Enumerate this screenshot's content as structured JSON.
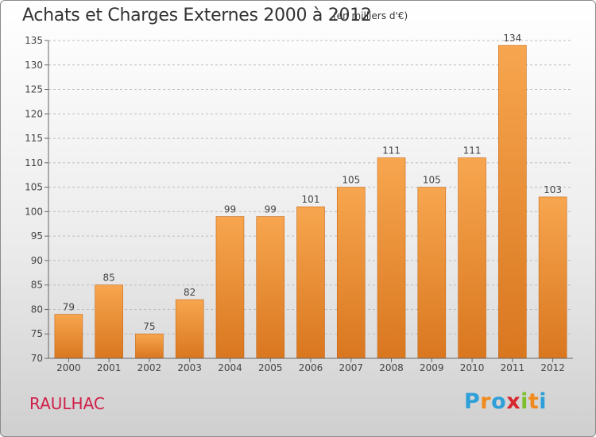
{
  "header": {
    "title": "Achats et Charges Externes 2000 à 2012",
    "subtitle": "(en milliers d'€)"
  },
  "footer": {
    "place": "RAULHAC",
    "logo_letters": [
      {
        "ch": "P",
        "color": "#2e9fd8"
      },
      {
        "ch": "r",
        "color": "#f08a1c"
      },
      {
        "ch": "o",
        "color": "#2e9fd8"
      },
      {
        "ch": "x",
        "color": "#d8262e"
      },
      {
        "ch": "i",
        "color": "#7bbf2a"
      },
      {
        "ch": "t",
        "color": "#f08a1c"
      },
      {
        "ch": "i",
        "color": "#2e9fd8"
      }
    ]
  },
  "chart_data": {
    "type": "bar",
    "title": "Achats et Charges Externes 2000 à 2012",
    "subtitle": "(en milliers d'€)",
    "categories": [
      "2000",
      "2001",
      "2002",
      "2003",
      "2004",
      "2005",
      "2006",
      "2007",
      "2008",
      "2009",
      "2010",
      "2011",
      "2012"
    ],
    "values": [
      79,
      85,
      75,
      82,
      99,
      99,
      101,
      105,
      111,
      105,
      111,
      134,
      103
    ],
    "ylim": [
      70,
      135
    ],
    "yticks": [
      70,
      75,
      80,
      85,
      90,
      95,
      100,
      105,
      110,
      115,
      120,
      125,
      130,
      135
    ],
    "grid": "horizontal dashed",
    "legend": "none",
    "colors": {
      "bar_light": "#f7a64f",
      "bar_dark": "#d9771f",
      "bar_edge": "#c8691a"
    }
  }
}
